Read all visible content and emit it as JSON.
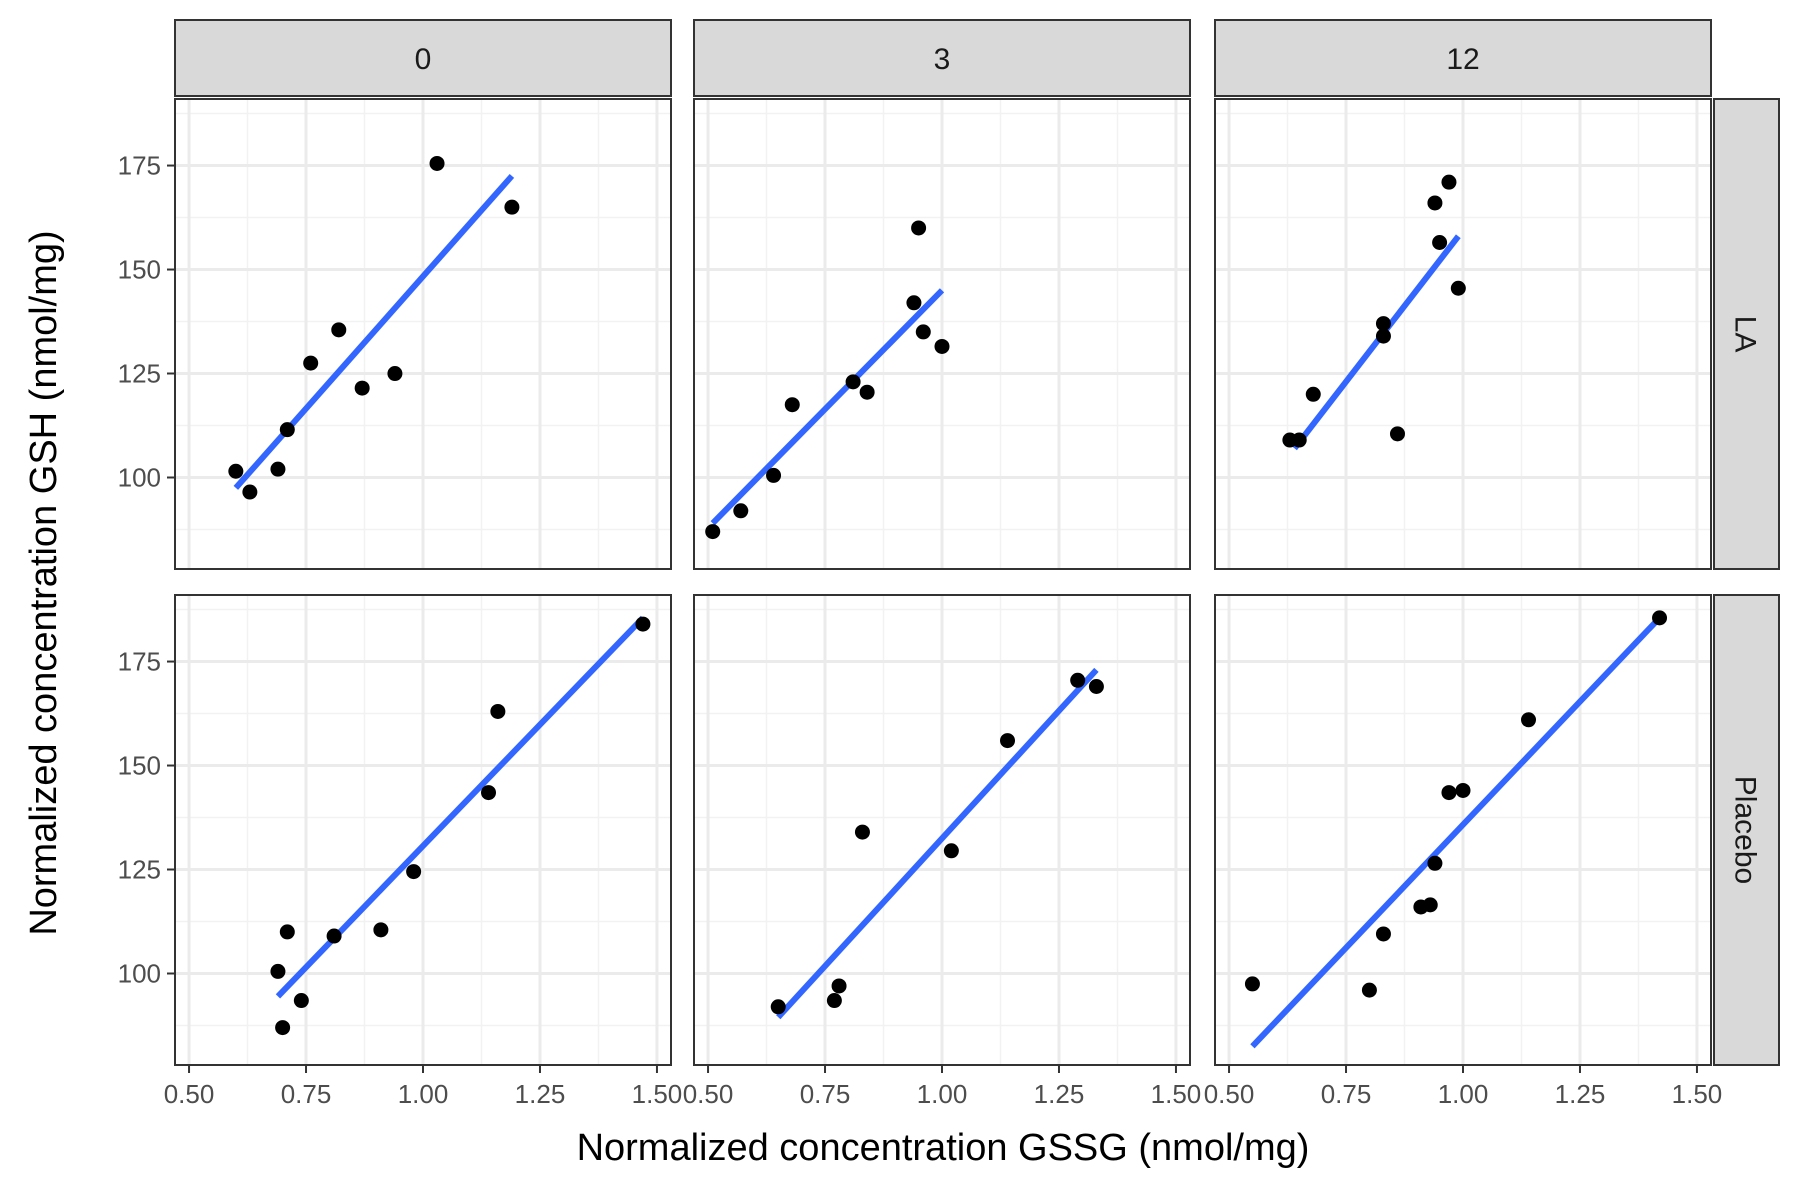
{
  "chart_data": {
    "type": "scatter",
    "xlabel": "Normalized concentration GSSG (nmol/mg)",
    "ylabel": "Normalized concentration GSH (nmol/mg)",
    "xlim": [
      0.47,
      1.53
    ],
    "ylim": [
      78,
      191
    ],
    "x_ticks": [
      0.5,
      0.75,
      1.0,
      1.25,
      1.5
    ],
    "x_tick_labels": [
      "0.50",
      "0.75",
      "1.00",
      "1.25",
      "1.50"
    ],
    "y_ticks": [
      100,
      125,
      150,
      175
    ],
    "y_tick_labels": [
      "100",
      "125",
      "150",
      "175"
    ],
    "column_facets": [
      "0",
      "3",
      "12"
    ],
    "row_facets": [
      "LA",
      "Placebo"
    ],
    "grid": true,
    "point_color": "#000000",
    "line_color": "#3366FF",
    "panels": [
      {
        "row": "LA",
        "col": "0",
        "points": [
          [
            0.6,
            101.5
          ],
          [
            0.63,
            96.5
          ],
          [
            0.69,
            102
          ],
          [
            0.71,
            111.5
          ],
          [
            0.76,
            127.5
          ],
          [
            0.82,
            135.5
          ],
          [
            0.87,
            121.5
          ],
          [
            0.94,
            125
          ],
          [
            1.03,
            175.5
          ],
          [
            1.19,
            165
          ]
        ],
        "fit": [
          [
            0.6,
            97.5
          ],
          [
            1.19,
            172.5
          ]
        ]
      },
      {
        "row": "LA",
        "col": "3",
        "points": [
          [
            0.51,
            87
          ],
          [
            0.57,
            92
          ],
          [
            0.64,
            100.5
          ],
          [
            0.68,
            117.5
          ],
          [
            0.81,
            123
          ],
          [
            0.84,
            120.5
          ],
          [
            0.94,
            142
          ],
          [
            0.95,
            160
          ],
          [
            0.96,
            135
          ],
          [
            1.0,
            131.5
          ]
        ],
        "fit": [
          [
            0.51,
            89
          ],
          [
            1.0,
            145
          ]
        ]
      },
      {
        "row": "LA",
        "col": "12",
        "points": [
          [
            0.63,
            109
          ],
          [
            0.65,
            109
          ],
          [
            0.68,
            120
          ],
          [
            0.83,
            137
          ],
          [
            0.83,
            134
          ],
          [
            0.86,
            110.5
          ],
          [
            0.94,
            166
          ],
          [
            0.95,
            156.5
          ],
          [
            0.97,
            171
          ],
          [
            0.99,
            145.5
          ]
        ],
        "fit": [
          [
            0.64,
            107
          ],
          [
            0.99,
            158
          ]
        ]
      },
      {
        "row": "Placebo",
        "col": "0",
        "points": [
          [
            0.69,
            100.5
          ],
          [
            0.7,
            87
          ],
          [
            0.71,
            110
          ],
          [
            0.74,
            93.5
          ],
          [
            0.81,
            109
          ],
          [
            0.91,
            110.5
          ],
          [
            0.98,
            124.5
          ],
          [
            1.14,
            143.5
          ],
          [
            1.16,
            163
          ],
          [
            1.47,
            184
          ]
        ],
        "fit": [
          [
            0.69,
            94.5
          ],
          [
            1.47,
            185.5
          ]
        ]
      },
      {
        "row": "Placebo",
        "col": "3",
        "points": [
          [
            0.65,
            92
          ],
          [
            0.77,
            93.5
          ],
          [
            0.78,
            97
          ],
          [
            0.83,
            134
          ],
          [
            1.02,
            129.5
          ],
          [
            1.14,
            156
          ],
          [
            1.29,
            170.5
          ],
          [
            1.33,
            169
          ]
        ],
        "fit": [
          [
            0.65,
            89.5
          ],
          [
            1.33,
            173
          ]
        ]
      },
      {
        "row": "Placebo",
        "col": "12",
        "points": [
          [
            0.55,
            97.5
          ],
          [
            0.8,
            96
          ],
          [
            0.83,
            109.5
          ],
          [
            0.91,
            116
          ],
          [
            0.93,
            116.5
          ],
          [
            0.94,
            126.5
          ],
          [
            0.97,
            143.5
          ],
          [
            1.0,
            144
          ],
          [
            1.14,
            161
          ],
          [
            1.42,
            185.5
          ]
        ],
        "fit": [
          [
            0.55,
            82.5
          ],
          [
            1.42,
            185.5
          ]
        ]
      }
    ]
  }
}
